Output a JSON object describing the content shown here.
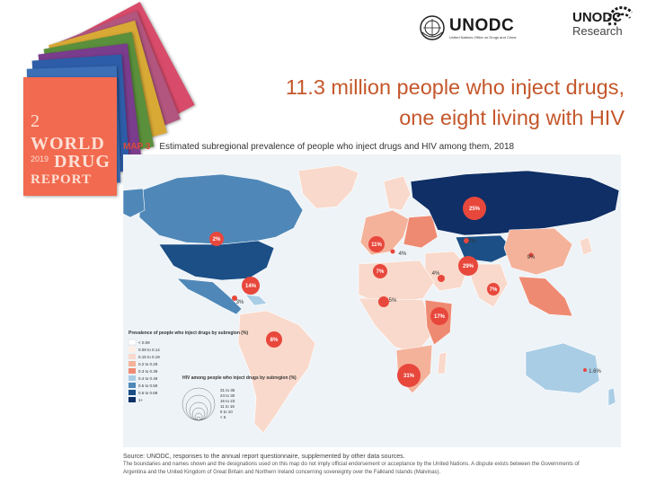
{
  "slide": {
    "title_line1": "11.3 million people who inject drugs,",
    "title_line2": "one eight living with HIV"
  },
  "logos": {
    "unodc_name": "UNODC",
    "unodc_subtitle": "United Nations Office on Drugs and Crime",
    "research_name": "UNODC",
    "research_sub": "Research"
  },
  "report_cover": {
    "number": "2",
    "line1": "WORLD",
    "line2": "DRUG",
    "line3": "REPORT",
    "year": "2019"
  },
  "map": {
    "label": "MAP 3",
    "caption": "Estimated subregional prevalence of people who inject drugs and HIV among them, 2018",
    "colors": {
      "ocean": "#eef3f7",
      "peach_light": "#f9d9cb",
      "peach": "#f4b29b",
      "salmon": "#ef8a72",
      "blue_light": "#a9cde5",
      "blue_mid": "#4f88b8",
      "blue_dark": "#1b4f86",
      "navy": "#0f2f66",
      "bubble": "#e8473c"
    },
    "bubbles": [
      {
        "label": "25%"
      },
      {
        "label": "2%"
      },
      {
        "label": "11%"
      },
      {
        "label": "4%"
      },
      {
        "label": "7%"
      },
      {
        "label": "4%"
      },
      {
        "label": "29%"
      },
      {
        "label": "9%"
      },
      {
        "label": "7%"
      },
      {
        "label": "14%"
      },
      {
        "label": "3%"
      },
      {
        "label": "5%"
      },
      {
        "label": "17%"
      },
      {
        "label": "8%"
      },
      {
        "label": "31%"
      },
      {
        "label": "1.6%"
      },
      {
        "label": "2%"
      }
    ],
    "legend": {
      "prevalence_title": "Prevalence of people who inject drugs by subregion (%)",
      "prevalence_items": [
        "< 0.09",
        "0.09 to 0.14",
        "0.15 to 0.19",
        "0.2 to 0.29",
        "0.3 to 0.39",
        "0.4 to 0.49",
        "0.5 to 0.59",
        "0.6 to 0.69",
        "1+"
      ],
      "hiv_title": "HIV among people who inject drugs by subregion (%)",
      "hiv_items": [
        "31 to 35",
        "24 to 30",
        "16 to 23",
        "11 to 15",
        "5 to 10",
        "< 5"
      ]
    }
  },
  "source": {
    "text": "Source: UNODC, responses to the annual report questionnaire, supplemented by other data sources.",
    "note_line1": "The boundaries and names shown and the designations used on this map do not imply official endorsement or acceptance by the United Nations. A dispute exists between the Governments of",
    "note_line2": "Argentina and the United Kingdom of Great Britain and Northern Ireland concerning sovereignty over the Falkland Islands (Malvinas)."
  }
}
